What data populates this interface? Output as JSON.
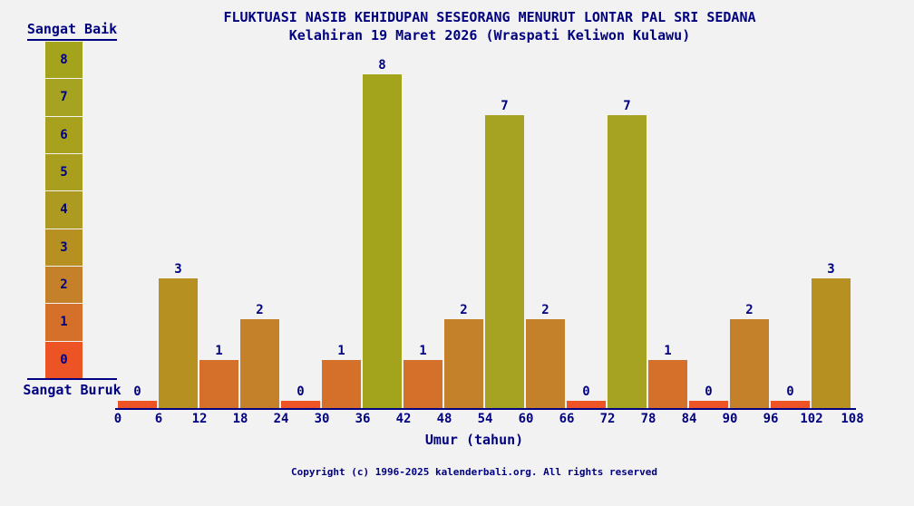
{
  "title": "FLUKTUASI NASIB KEHIDUPAN SESEORANG MENURUT LONTAR PAL SRI SEDANA",
  "subtitle": "Kelahiran 19 Maret 2026 (Wraspati Keliwon Kulawu)",
  "legend": {
    "top_label": "Sangat Baik",
    "bottom_label": "Sangat Buruk",
    "scale": [
      8,
      7,
      6,
      5,
      4,
      3,
      2,
      1,
      0
    ]
  },
  "chart_data": {
    "type": "bar",
    "title": "FLUKTUASI NASIB KEHIDUPAN SESEORANG MENURUT LONTAR PAL SRI SEDANA",
    "subtitle": "Kelahiran 19 Maret 2026 (Wraspati Keliwon Kulawu)",
    "xlabel": "Umur (tahun)",
    "ylabel": "",
    "ylim": [
      0,
      8
    ],
    "grid": false,
    "legend_position": "left",
    "x_ticks": [
      0,
      6,
      12,
      18,
      24,
      30,
      36,
      42,
      48,
      54,
      60,
      66,
      72,
      78,
      84,
      90,
      96,
      102,
      108
    ],
    "categories": [
      "0-6",
      "6-12",
      "12-18",
      "18-24",
      "24-30",
      "30-36",
      "36-42",
      "42-48",
      "48-54",
      "54-60",
      "60-66",
      "66-72",
      "72-78",
      "78-84",
      "84-90",
      "90-96",
      "96-102",
      "102-108"
    ],
    "values": [
      0,
      3,
      1,
      2,
      0,
      1,
      8,
      1,
      2,
      7,
      2,
      0,
      7,
      1,
      0,
      2,
      0,
      3
    ],
    "value_colors": {
      "0": "#ec5426",
      "1": "#d4702a",
      "2": "#c5812a",
      "3": "#b69021",
      "4": "#ad9a20",
      "5": "#a99e1e",
      "6": "#a7a11e",
      "7": "#a5a321",
      "8": "#a3a41c"
    }
  },
  "colors": {
    "background": "#f2f2f2",
    "text": "#000080",
    "axis": "#000080"
  },
  "footer": "Copyright (c) 1996-2025 kalenderbali.org. All rights reserved"
}
